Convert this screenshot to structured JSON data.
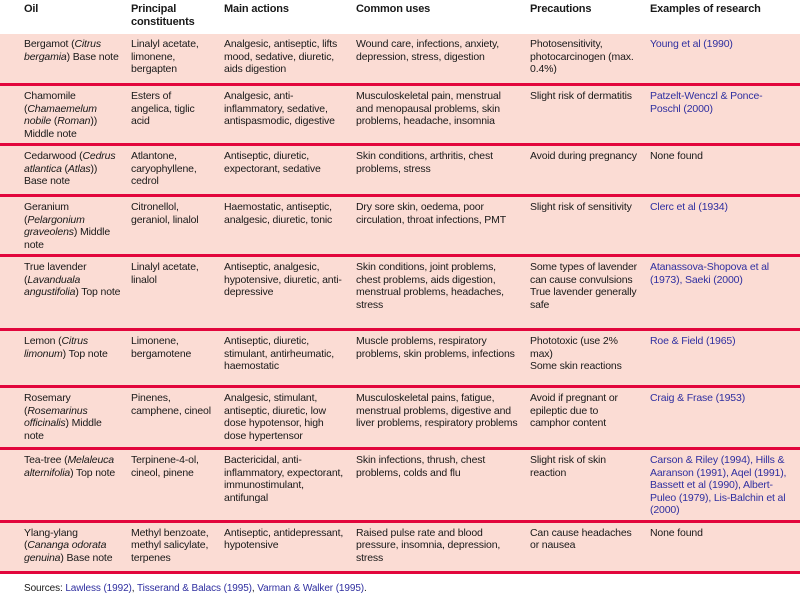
{
  "colors": {
    "row_bg": "#fbdcd4",
    "rule": "#e2063c",
    "link": "#2f2fa0",
    "text": "#191919"
  },
  "table": {
    "columns": [
      {
        "key": "oil",
        "label": "Oil"
      },
      {
        "key": "constituents",
        "label": "Principal constituents"
      },
      {
        "key": "actions",
        "label": "Main actions"
      },
      {
        "key": "uses",
        "label": "Common uses"
      },
      {
        "key": "precautions",
        "label": "Precautions"
      },
      {
        "key": "research",
        "label": "Examples of research"
      }
    ],
    "rows": [
      {
        "oil": [
          {
            "text": "Bergamot ("
          },
          {
            "text": "Citrus bergamia",
            "italic": true
          },
          {
            "text": ") Base note"
          }
        ],
        "constituents": "Linalyl acetate, limonene, bergapten",
        "actions": "Analgesic, antiseptic, lifts mood, sedative, diuretic, aids digestion",
        "uses": "Wound care, infections, anxiety, depression, stress, digestion",
        "precautions": "Photosensitivity, photocarcinogen (max. 0.4%)",
        "research": [
          {
            "text": "Young et al (1990)",
            "link": true
          }
        ]
      },
      {
        "oil": [
          {
            "text": "Chamomile ("
          },
          {
            "text": "Chamaemelum nobile",
            "italic": true
          },
          {
            "text": " ("
          },
          {
            "text": "Roman",
            "italic": true
          },
          {
            "text": ")) Middle note"
          }
        ],
        "constituents": "Esters of angelica, tiglic acid",
        "actions": "Analgesic, anti-inflammatory, sedative, antispasmodic, digestive",
        "uses": "Musculoskeletal pain, menstrual and menopausal problems, skin problems, headache, insomnia",
        "precautions": "Slight risk of dermatitis",
        "research": [
          {
            "text": "Patzelt-Wenczl & Ponce-Poschl (2000)",
            "link": true
          }
        ]
      },
      {
        "oil": [
          {
            "text": "Cedarwood ("
          },
          {
            "text": "Cedrus atlantica",
            "italic": true
          },
          {
            "text": " ("
          },
          {
            "text": "Atlas",
            "italic": true
          },
          {
            "text": ")) Base note"
          }
        ],
        "constituents": "Atlantone, caryophyllene, cedrol",
        "actions": "Antiseptic, diuretic, expectorant, sedative",
        "uses": "Skin conditions, arthritis, chest problems, stress",
        "precautions": "Avoid during pregnancy",
        "research": [
          {
            "text": "None found",
            "link": false
          }
        ]
      },
      {
        "oil": [
          {
            "text": "Geranium ("
          },
          {
            "text": "Pelargonium graveolens",
            "italic": true
          },
          {
            "text": ") Middle note"
          }
        ],
        "constituents": "Citronellol, geraniol, linalol",
        "actions": "Haemostatic, antiseptic, analgesic, diuretic, tonic",
        "uses": "Dry sore skin, oedema, poor circulation, throat infections, PMT",
        "precautions": "Slight risk of sensitivity",
        "research": [
          {
            "text": "Clerc et al (1934)",
            "link": true
          }
        ]
      },
      {
        "oil": [
          {
            "text": "True lavender ("
          },
          {
            "text": "Lavanduala angustifolia",
            "italic": true
          },
          {
            "text": ") Top note"
          }
        ],
        "constituents": "Linalyl acetate, linalol",
        "actions": "Antiseptic, analgesic, hypotensive, diuretic, anti-depressive",
        "uses": "Skin conditions, joint problems, chest problems, aids digestion, menstrual problems, headaches, stress",
        "precautions": "Some types of lavender can cause convulsions\nTrue lavender generally safe",
        "research": [
          {
            "text": "Atanassova-Shopova et al (1973), Saeki (2000)",
            "link": true
          }
        ]
      },
      {
        "oil": [
          {
            "text": "Lemon ("
          },
          {
            "text": "Citrus limonum",
            "italic": true
          },
          {
            "text": ") Top note"
          }
        ],
        "constituents": "Limonene, bergamotene",
        "actions": "Antiseptic, diuretic, stimulant, antirheumatic, haemostatic",
        "uses": "Muscle problems, respiratory problems, skin problems, infections",
        "precautions": "Phototoxic (use 2% max)\nSome skin reactions",
        "research": [
          {
            "text": "Roe & Field (1965)",
            "link": true
          }
        ]
      },
      {
        "oil": [
          {
            "text": "Rosemary ("
          },
          {
            "text": "Rosemarinus officinalis",
            "italic": true
          },
          {
            "text": ") Middle note"
          }
        ],
        "constituents": "Pinenes, camphene, cineol",
        "actions": "Analgesic, stimulant, antiseptic, diuretic, low dose hypotensor, high dose hypertensor",
        "uses": "Musculoskeletal pains, fatigue, menstrual problems, digestive and liver problems, respiratory problems",
        "precautions": "Avoid if pregnant or epileptic due to camphor content",
        "research": [
          {
            "text": "Craig & Frase (1953)",
            "link": true
          }
        ]
      },
      {
        "oil": [
          {
            "text": "Tea-tree ("
          },
          {
            "text": "Melaleuca alternifolia",
            "italic": true
          },
          {
            "text": ") Top note"
          }
        ],
        "constituents": "Terpinene-4-ol, cineol, pinene",
        "actions": "Bactericidal, anti-inflammatory, expectorant, immunostimulant, antifungal",
        "uses": "Skin infections, thrush, chest problems, colds and flu",
        "precautions": "Slight risk of skin reaction",
        "research": [
          {
            "text": "Carson & Riley (1994), Hills & Aaranson (1991), Aqel (1991), Bassett et al (1990), Albert-Puleo (1979), Lis-Balchin et al (2000)",
            "link": true
          }
        ]
      },
      {
        "oil": [
          {
            "text": "Ylang-ylang ("
          },
          {
            "text": "Cananga odorata genuina",
            "italic": true
          },
          {
            "text": ") Base note"
          }
        ],
        "constituents": "Methyl benzoate, methyl salicylate, terpenes",
        "actions": "Antiseptic, antidepressant, hypotensive",
        "uses": "Raised pulse rate and blood pressure, insomnia, depression, stress",
        "precautions": "Can cause headaches or nausea",
        "research": [
          {
            "text": "None found",
            "link": false
          }
        ]
      }
    ]
  },
  "sources": {
    "segments": [
      {
        "text": "Sources: "
      },
      {
        "text": "Lawless (1992)",
        "link": true
      },
      {
        "text": ", "
      },
      {
        "text": "Tisserand & Balacs (1995)",
        "link": true
      },
      {
        "text": ", "
      },
      {
        "text": "Varman & Walker (1995)",
        "link": true
      },
      {
        "text": "."
      }
    ]
  }
}
